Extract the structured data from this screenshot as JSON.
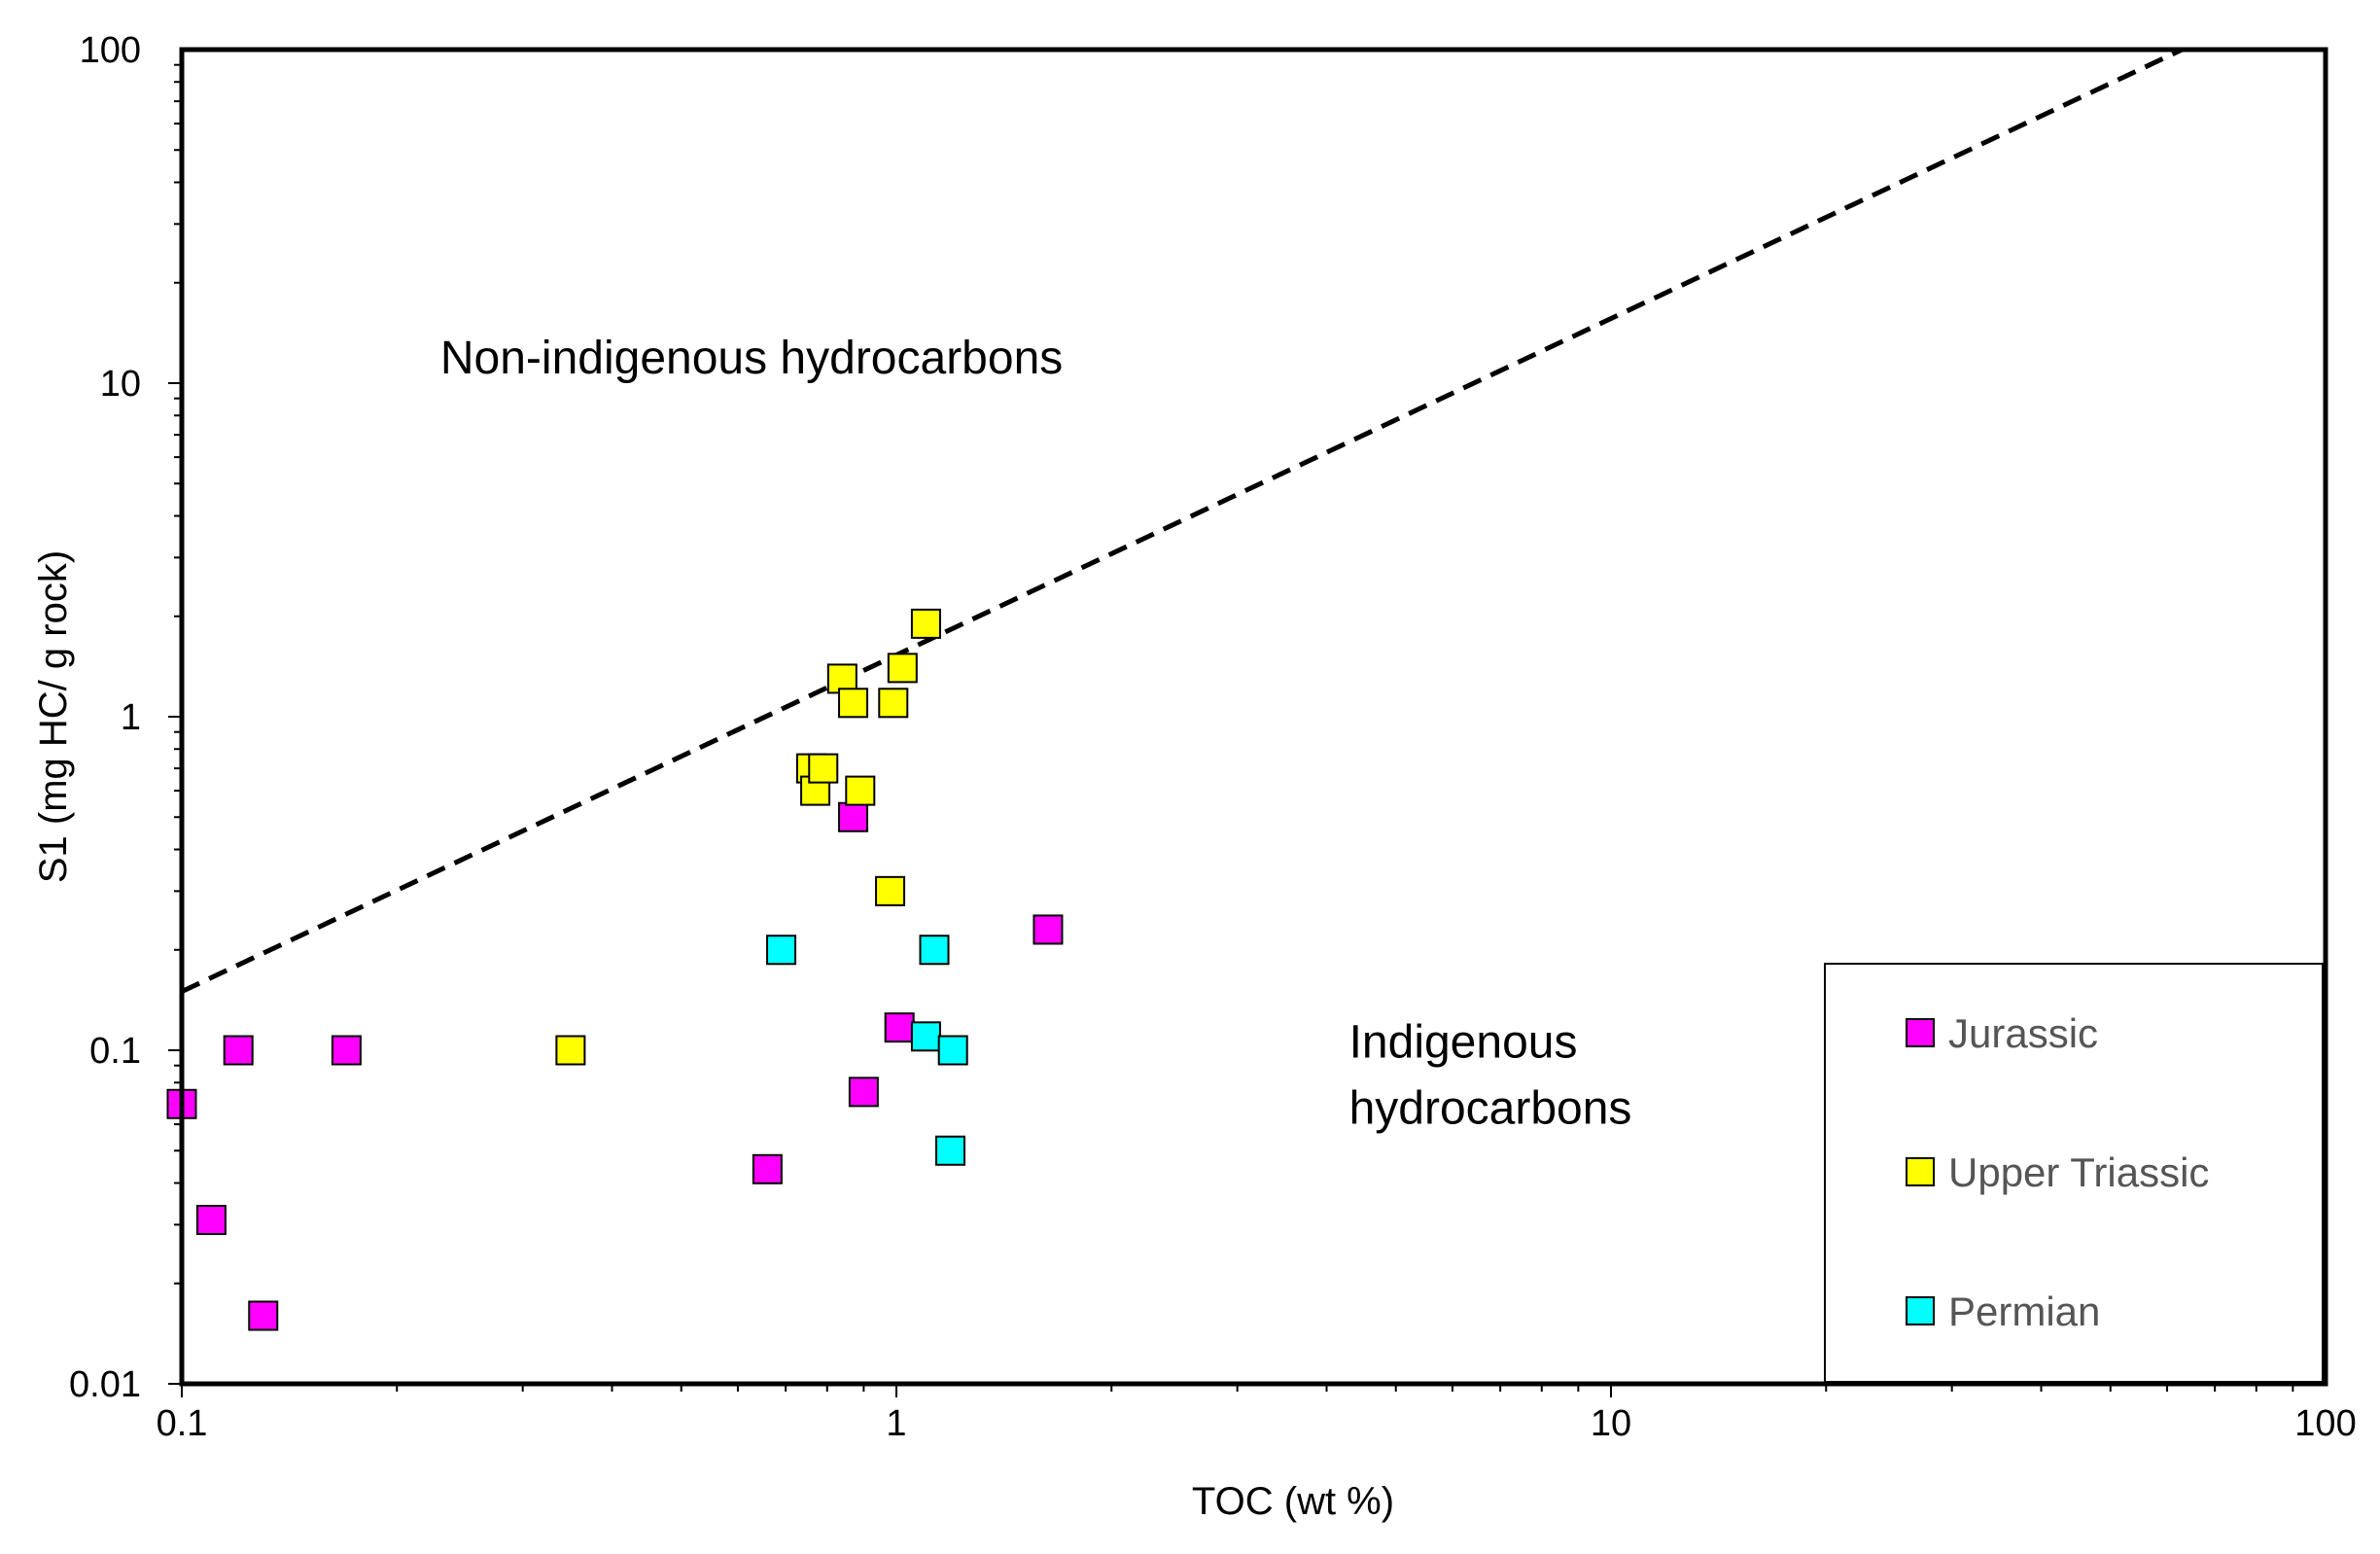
{
  "chart_data": {
    "type": "scatter",
    "xscale": "log",
    "yscale": "log",
    "xlim": [
      0.1,
      100
    ],
    "ylim": [
      0.01,
      100
    ],
    "xlabel": "TOC (wt %)",
    "ylabel": "S1 (mg HC/ g rock)",
    "x_ticks": [
      {
        "value": 0.1,
        "label": "0.1"
      },
      {
        "value": 1,
        "label": "1"
      },
      {
        "value": 10,
        "label": "10"
      },
      {
        "value": 100,
        "label": "100"
      }
    ],
    "y_ticks": [
      {
        "value": 0.01,
        "label": "0.01"
      },
      {
        "value": 0.1,
        "label": "0.1"
      },
      {
        "value": 1,
        "label": "1"
      },
      {
        "value": 10,
        "label": "10"
      },
      {
        "value": 100,
        "label": "100"
      }
    ],
    "reference_line": {
      "style": "dashed",
      "points": [
        [
          0.1,
          0.15
        ],
        [
          63,
          100
        ]
      ]
    },
    "annotations": [
      {
        "id": "non-indigenous",
        "lines": [
          "Non-indigenous hydrocarbons"
        ],
        "x": 0.23,
        "y": 10.7
      },
      {
        "id": "indigenous",
        "lines": [
          "Indigenous",
          "hydrocarbons"
        ],
        "x": 4.3,
        "y": 0.095
      }
    ],
    "legend": {
      "position": "bottom-right"
    },
    "series": [
      {
        "name": "Jurassic",
        "color": "#ff00ff",
        "points": [
          [
            0.1,
            0.069
          ],
          [
            0.11,
            0.031
          ],
          [
            0.12,
            0.1
          ],
          [
            0.13,
            0.016
          ],
          [
            0.17,
            0.1
          ],
          [
            0.66,
            0.044
          ],
          [
            0.87,
            0.5
          ],
          [
            0.9,
            0.075
          ],
          [
            1.01,
            0.117
          ],
          [
            1.63,
            0.23
          ]
        ]
      },
      {
        "name": "Upper Triassic",
        "color": "#ffff00",
        "points": [
          [
            0.35,
            0.1
          ],
          [
            0.76,
            0.7
          ],
          [
            0.77,
            0.6
          ],
          [
            0.79,
            0.7
          ],
          [
            0.84,
            1.3
          ],
          [
            0.87,
            1.1
          ],
          [
            0.89,
            0.6
          ],
          [
            0.98,
            0.3
          ],
          [
            0.99,
            1.1
          ],
          [
            1.02,
            1.4
          ],
          [
            1.1,
            1.9
          ]
        ]
      },
      {
        "name": "Permian",
        "color": "#00ffff",
        "points": [
          [
            0.69,
            0.2
          ],
          [
            1.1,
            0.11
          ],
          [
            1.13,
            0.2
          ],
          [
            1.19,
            0.05
          ],
          [
            1.2,
            0.1
          ]
        ]
      }
    ]
  }
}
